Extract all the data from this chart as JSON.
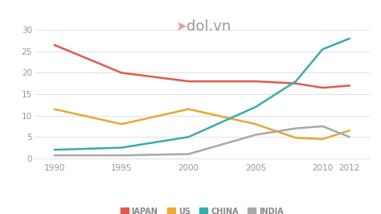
{
  "years": [
    1990,
    1995,
    2000,
    2005,
    2008,
    2010,
    2012
  ],
  "japan": [
    26.5,
    20.0,
    18.0,
    18.0,
    17.5,
    16.5,
    17.0
  ],
  "us": [
    11.5,
    8.0,
    11.5,
    8.0,
    4.8,
    4.5,
    6.5
  ],
  "china": [
    2.0,
    2.5,
    5.0,
    12.0,
    18.0,
    25.5,
    28.0
  ],
  "india": [
    0.7,
    0.7,
    1.0,
    5.5,
    7.0,
    7.5,
    5.0
  ],
  "japan_color": "#e05a4e",
  "us_color": "#e8a838",
  "china_color": "#3aacac",
  "india_color": "#a8a8a8",
  "bg_color": "#ffffff",
  "grid_color": "#dddddd",
  "yticks": [
    0,
    5,
    10,
    15,
    20,
    25,
    30
  ],
  "xticks": [
    1990,
    1995,
    2000,
    2005,
    2010,
    2012
  ],
  "ylim": [
    -0.5,
    31
  ],
  "xlim": [
    1988.5,
    2013.5
  ],
  "legend_labels": [
    "JAPAN",
    "US",
    "CHINA",
    "INDIA"
  ],
  "tick_fontsize": 7.5,
  "legend_fontsize": 7,
  "line_width": 1.8,
  "watermark_text": "dol.vn",
  "watermark_fontsize": 13,
  "watermark_color": "#888888"
}
